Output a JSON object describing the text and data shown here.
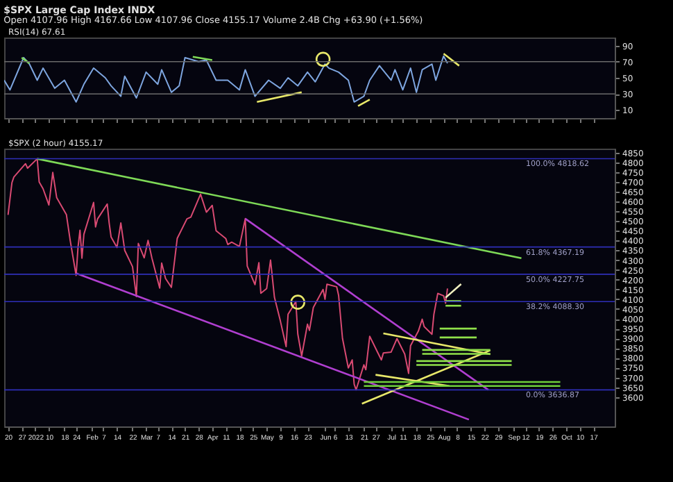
{
  "chart_data": [
    {
      "type": "line",
      "title": "$SPX Large Cap Index INDX",
      "subtitle": "Open 4107.96 High 4167.66 Low 4107.96 Close 4155.17 Volume 2.4B Chg +63.90 (+1.56%)",
      "annotations": [
        "RSI(14) 67.61"
      ],
      "xlim": [
        "2021-12-18",
        "2022-10-28"
      ],
      "xticks": [
        {
          "value": "2021-12-20",
          "label": null
        },
        {
          "value": "2021-12-27",
          "label": null
        },
        {
          "value": "2022-01-03",
          "label": null
        },
        {
          "value": "2022-01-10",
          "label": null
        },
        {
          "value": "2022-01-18",
          "label": null
        },
        {
          "value": "2022-01-24",
          "label": null
        },
        {
          "value": "2022-02-01",
          "label": null
        },
        {
          "value": "2022-02-07",
          "label": null
        },
        {
          "value": "2022-02-14",
          "label": null
        },
        {
          "value": "2022-02-22",
          "label": null
        },
        {
          "value": "2022-03-01",
          "label": null
        },
        {
          "value": "2022-03-07",
          "label": null
        },
        {
          "value": "2022-03-14",
          "label": null
        },
        {
          "value": "2022-03-21",
          "label": null
        },
        {
          "value": "2022-03-28",
          "label": null
        },
        {
          "value": "2022-04-04",
          "label": null
        },
        {
          "value": "2022-04-11",
          "label": null
        },
        {
          "value": "2022-04-18",
          "label": null
        },
        {
          "value": "2022-04-25",
          "label": null
        },
        {
          "value": "2022-05-02",
          "label": null
        },
        {
          "value": "2022-05-09",
          "label": null
        },
        {
          "value": "2022-05-16",
          "label": null
        },
        {
          "value": "2022-05-23",
          "label": null
        },
        {
          "value": "2022-06-01",
          "label": null
        },
        {
          "value": "2022-06-06",
          "label": null
        },
        {
          "value": "2022-06-13",
          "label": null
        },
        {
          "value": "2022-06-21",
          "label": null
        },
        {
          "value": "2022-06-27",
          "label": null
        },
        {
          "value": "2022-07-05",
          "label": null
        },
        {
          "value": "2022-07-11",
          "label": null
        },
        {
          "value": "2022-07-18",
          "label": null
        },
        {
          "value": "2022-07-25",
          "label": null
        },
        {
          "value": "2022-08-01",
          "label": null
        },
        {
          "value": "2022-08-08",
          "label": null
        },
        {
          "value": "2022-08-15",
          "label": null
        },
        {
          "value": "2022-08-22",
          "label": null
        },
        {
          "value": "2022-08-29",
          "label": null
        },
        {
          "value": "2022-09-06",
          "label": null
        },
        {
          "value": "2022-09-12",
          "label": null
        },
        {
          "value": "2022-09-19",
          "label": null
        },
        {
          "value": "2022-09-26",
          "label": null
        },
        {
          "value": "2022-10-03",
          "label": null
        },
        {
          "value": "2022-10-10",
          "label": null
        },
        {
          "value": "2022-10-17",
          "label": null
        }
      ],
      "ylim": [
        0,
        100
      ],
      "yticks": [
        10,
        30,
        50,
        70,
        90
      ],
      "tick_labels": "y",
      "grid": false,
      "ref_lines": [
        {
          "axis": "y",
          "value": 70,
          "label": null,
          "color": "#6b6b6b"
        },
        {
          "axis": "y",
          "value": 30,
          "label": null,
          "color": "#6b6b6b"
        }
      ],
      "series": [
        {
          "color": "#7ea6e0",
          "x": [
            "2021-12-18",
            "2021-12-21",
            "2021-12-28",
            "2021-12-31",
            "2022-01-04",
            "2022-01-07",
            "2022-01-13",
            "2022-01-18",
            "2022-01-24",
            "2022-01-28",
            "2022-02-02",
            "2022-02-08",
            "2022-02-11",
            "2022-02-16",
            "2022-02-18",
            "2022-02-24",
            "2022-03-01",
            "2022-03-07",
            "2022-03-09",
            "2022-03-14",
            "2022-03-18",
            "2022-03-21",
            "2022-03-28",
            "2022-04-01",
            "2022-04-06",
            "2022-04-12",
            "2022-04-18",
            "2022-04-21",
            "2022-04-26",
            "2022-05-03",
            "2022-05-09",
            "2022-05-13",
            "2022-05-18",
            "2022-05-23",
            "2022-05-27",
            "2022-06-01",
            "2022-06-03",
            "2022-06-08",
            "2022-06-13",
            "2022-06-16",
            "2022-06-21",
            "2022-06-24",
            "2022-06-29",
            "2022-07-05",
            "2022-07-07",
            "2022-07-11",
            "2022-07-15",
            "2022-07-18",
            "2022-07-21",
            "2022-07-26",
            "2022-07-28",
            "2022-08-01",
            "2022-08-03"
          ],
          "values": [
            47,
            35,
            75,
            67,
            47,
            62,
            37,
            47,
            20,
            42,
            62,
            50,
            40,
            27,
            52,
            25,
            57,
            42,
            60,
            32,
            40,
            75,
            70,
            72,
            47,
            47,
            35,
            60,
            27,
            47,
            37,
            50,
            40,
            57,
            45,
            67,
            62,
            57,
            47,
            20,
            27,
            47,
            65,
            47,
            60,
            35,
            62,
            32,
            60,
            67,
            47,
            77,
            68
          ]
        },
        {
          "color": "#7ed957",
          "x": [
            "2021-12-27",
            "2021-12-31"
          ],
          "values": [
            75,
            68
          ]
        },
        {
          "color": "#7ed957",
          "x": [
            "2022-03-25",
            "2022-04-04"
          ],
          "values": [
            76,
            72
          ]
        },
        {
          "color": "#e8e86a",
          "x": [
            "2022-04-27",
            "2022-05-20"
          ],
          "values": [
            20,
            32
          ]
        },
        {
          "color": "#e8e86a",
          "x": [
            "2022-06-18",
            "2022-06-24"
          ],
          "values": [
            15,
            23
          ]
        },
        {
          "color": "#e8e86a",
          "x": [
            "2022-08-01",
            "2022-08-09"
          ],
          "values": [
            80,
            65
          ]
        },
        {
          "type": "scatter",
          "marker": "circle",
          "color": "#e8e86a",
          "x": [
            "2022-05-31"
          ],
          "values": [
            73
          ]
        }
      ]
    },
    {
      "type": "line",
      "annotations": [
        "$SPX (2 hour) 4155.17"
      ],
      "xlim": [
        "2021-12-18",
        "2022-10-28"
      ],
      "xticks": [
        {
          "value": "2021-12-20",
          "label": "20"
        },
        {
          "value": "2021-12-27",
          "label": "27"
        },
        {
          "value": "2022-01-03",
          "label": "2022"
        },
        {
          "value": "2022-01-10",
          "label": "10"
        },
        {
          "value": "2022-01-18",
          "label": "18"
        },
        {
          "value": "2022-01-24",
          "label": "24"
        },
        {
          "value": "2022-02-01",
          "label": "Feb"
        },
        {
          "value": "2022-02-07",
          "label": "7"
        },
        {
          "value": "2022-02-14",
          "label": "14"
        },
        {
          "value": "2022-02-22",
          "label": "22"
        },
        {
          "value": "2022-03-01",
          "label": "Mar"
        },
        {
          "value": "2022-03-07",
          "label": "7"
        },
        {
          "value": "2022-03-14",
          "label": "14"
        },
        {
          "value": "2022-03-21",
          "label": "21"
        },
        {
          "value": "2022-03-28",
          "label": "28"
        },
        {
          "value": "2022-04-04",
          "label": "Apr"
        },
        {
          "value": "2022-04-11",
          "label": "11"
        },
        {
          "value": "2022-04-18",
          "label": "18"
        },
        {
          "value": "2022-04-25",
          "label": "25"
        },
        {
          "value": "2022-05-02",
          "label": "May"
        },
        {
          "value": "2022-05-09",
          "label": "9"
        },
        {
          "value": "2022-05-16",
          "label": "16"
        },
        {
          "value": "2022-05-23",
          "label": "23"
        },
        {
          "value": "2022-06-01",
          "label": "Jun"
        },
        {
          "value": "2022-06-06",
          "label": "6"
        },
        {
          "value": "2022-06-13",
          "label": "13"
        },
        {
          "value": "2022-06-21",
          "label": "21"
        },
        {
          "value": "2022-06-27",
          "label": "27"
        },
        {
          "value": "2022-07-05",
          "label": "Jul"
        },
        {
          "value": "2022-07-11",
          "label": "11"
        },
        {
          "value": "2022-07-18",
          "label": "18"
        },
        {
          "value": "2022-07-25",
          "label": "25"
        },
        {
          "value": "2022-08-01",
          "label": "Aug"
        },
        {
          "value": "2022-08-08",
          "label": "8"
        },
        {
          "value": "2022-08-15",
          "label": "15"
        },
        {
          "value": "2022-08-22",
          "label": "22"
        },
        {
          "value": "2022-08-29",
          "label": "29"
        },
        {
          "value": "2022-09-06",
          "label": "Sep"
        },
        {
          "value": "2022-09-12",
          "label": "12"
        },
        {
          "value": "2022-09-19",
          "label": "19"
        },
        {
          "value": "2022-09-26",
          "label": "26"
        },
        {
          "value": "2022-10-03",
          "label": "Oct"
        },
        {
          "value": "2022-10-10",
          "label": "10"
        },
        {
          "value": "2022-10-17",
          "label": "17"
        }
      ],
      "ylim": [
        3450,
        4870
      ],
      "yticks": [
        3600,
        3650,
        3700,
        3750,
        3800,
        3850,
        3900,
        3950,
        4000,
        4050,
        4100,
        4150,
        4200,
        4250,
        4300,
        4350,
        4400,
        4450,
        4500,
        4550,
        4600,
        4650,
        4700,
        4750,
        4800,
        4850
      ],
      "grid": false,
      "ref_lines": [
        {
          "axis": "y",
          "value": 4818.62,
          "label": "100.0% 4818.62",
          "color": "#2f2fb8"
        },
        {
          "axis": "y",
          "value": 4367.19,
          "label": "61.8% 4367.19",
          "color": "#2f2fb8"
        },
        {
          "axis": "y",
          "value": 4227.75,
          "label": "50.0% 4227.75",
          "color": "#2f2fb8"
        },
        {
          "axis": "y",
          "value": 4088.3,
          "label": "38.2% 4088.30",
          "color": "#2f2fb8"
        },
        {
          "axis": "y",
          "value": 3636.87,
          "label": "0.0% 3636.87",
          "color": "#2f2fb8"
        }
      ],
      "series": [
        {
          "color": "#d94a72",
          "x": [
            "2021-12-20",
            "2021-12-22",
            "2021-12-23",
            "2021-12-29",
            "2021-12-30",
            "2022-01-04",
            "2022-01-05",
            "2022-01-07",
            "2022-01-10",
            "2022-01-12",
            "2022-01-14",
            "2022-01-19",
            "2022-01-21",
            "2022-01-24",
            "2022-01-25",
            "2022-01-26",
            "2022-01-27",
            "2022-01-28",
            "2022-02-02",
            "2022-02-03",
            "2022-02-04",
            "2022-02-09",
            "2022-02-10",
            "2022-02-11",
            "2022-02-14",
            "2022-02-16",
            "2022-02-18",
            "2022-02-22",
            "2022-02-24",
            "2022-02-25",
            "2022-02-28",
            "2022-03-02",
            "2022-03-04",
            "2022-03-08",
            "2022-03-09",
            "2022-03-11",
            "2022-03-14",
            "2022-03-17",
            "2022-03-22",
            "2022-03-24",
            "2022-03-29",
            "2022-04-01",
            "2022-04-04",
            "2022-04-06",
            "2022-04-11",
            "2022-04-12",
            "2022-04-14",
            "2022-04-18",
            "2022-04-21",
            "2022-04-22",
            "2022-04-26",
            "2022-04-28",
            "2022-04-29",
            "2022-05-02",
            "2022-05-04",
            "2022-05-06",
            "2022-05-09",
            "2022-05-12",
            "2022-05-13",
            "2022-05-17",
            "2022-05-18",
            "2022-05-20",
            "2022-05-23",
            "2022-05-24",
            "2022-05-26",
            "2022-05-31",
            "2022-06-01",
            "2022-06-02",
            "2022-06-07",
            "2022-06-08",
            "2022-06-10",
            "2022-06-13",
            "2022-06-15",
            "2022-06-16",
            "2022-06-17",
            "2022-06-21",
            "2022-06-22",
            "2022-06-24",
            "2022-06-28",
            "2022-06-30",
            "2022-07-01",
            "2022-07-05",
            "2022-07-08",
            "2022-07-12",
            "2022-07-14",
            "2022-07-15",
            "2022-07-19",
            "2022-07-21",
            "2022-07-22",
            "2022-07-26",
            "2022-07-27",
            "2022-07-29",
            "2022-08-01",
            "2022-08-02",
            "2022-08-03"
          ],
          "values": [
            4531,
            4696,
            4725,
            4793,
            4770,
            4818,
            4700,
            4665,
            4582,
            4748,
            4620,
            4533,
            4398,
            4222,
            4367,
            4453,
            4310,
            4432,
            4595,
            4470,
            4510,
            4587,
            4490,
            4418,
            4365,
            4490,
            4350,
            4267,
            4114,
            4385,
            4312,
            4401,
            4310,
            4157,
            4285,
            4206,
            4161,
            4411,
            4511,
            4520,
            4637,
            4545,
            4580,
            4450,
            4410,
            4380,
            4392,
            4370,
            4512,
            4270,
            4175,
            4287,
            4131,
            4155,
            4300,
            4110,
            3991,
            3858,
            4023,
            4088,
            3923,
            3810,
            3973,
            3941,
            4058,
            4150,
            4100,
            4177,
            4164,
            4120,
            3900,
            3749,
            3790,
            3666,
            3637,
            3765,
            3740,
            3911,
            3830,
            3790,
            3825,
            3830,
            3899,
            3820,
            3721,
            3863,
            3937,
            3998,
            3960,
            3921,
            4023,
            4130,
            4118,
            4080,
            4155
          ]
        },
        {
          "color": "#7ed957",
          "x": [
            "2022-01-04",
            "2022-09-10"
          ],
          "values": [
            4818,
            4310
          ]
        },
        {
          "color": "#b03fd0",
          "x": [
            "2022-04-21",
            "2022-08-24"
          ],
          "values": [
            4512,
            3637
          ]
        },
        {
          "color": "#b03fd0",
          "x": [
            "2022-01-24",
            "2022-08-14"
          ],
          "values": [
            4233,
            3485
          ]
        },
        {
          "color": "#e8e86a",
          "x": [
            "2022-07-01",
            "2022-08-25"
          ],
          "values": [
            3926,
            3819
          ]
        },
        {
          "color": "#e8e86a",
          "x": [
            "2022-06-20",
            "2022-08-25"
          ],
          "values": [
            3566,
            3839
          ]
        },
        {
          "color": "#e8e86a",
          "x": [
            "2022-06-27",
            "2022-08-04"
          ],
          "values": [
            3714,
            3657
          ]
        },
        {
          "color": "#f0f0c0",
          "x": [
            "2022-08-02",
            "2022-08-10"
          ],
          "values": [
            4108,
            4178
          ]
        },
        {
          "color": "#8fe04a",
          "x": [
            "2022-08-02",
            "2022-08-10"
          ],
          "values": [
            4091,
            4091
          ]
        },
        {
          "color": "#8fe04a",
          "x": [
            "2022-08-02",
            "2022-08-10"
          ],
          "values": [
            4067,
            4067
          ]
        },
        {
          "color": "#8fe04a",
          "x": [
            "2022-07-30",
            "2022-08-18"
          ],
          "values": [
            3950,
            3950
          ]
        },
        {
          "color": "#8fe04a",
          "x": [
            "2022-07-30",
            "2022-08-18"
          ],
          "values": [
            3905,
            3905
          ]
        },
        {
          "color": "#8fe04a",
          "x": [
            "2022-07-21",
            "2022-08-25"
          ],
          "values": [
            3841,
            3841
          ]
        },
        {
          "color": "#8fe04a",
          "x": [
            "2022-07-21",
            "2022-08-25"
          ],
          "values": [
            3821,
            3821
          ]
        },
        {
          "color": "#8fe04a",
          "x": [
            "2022-07-18",
            "2022-09-05"
          ],
          "values": [
            3784,
            3784
          ]
        },
        {
          "color": "#8fe04a",
          "x": [
            "2022-07-18",
            "2022-09-05"
          ],
          "values": [
            3764,
            3764
          ]
        },
        {
          "color": "#6fcf3a",
          "x": [
            "2022-06-21",
            "2022-09-30"
          ],
          "values": [
            3677,
            3677
          ]
        },
        {
          "color": "#6fcf3a",
          "x": [
            "2022-06-21",
            "2022-09-30"
          ],
          "values": [
            3657,
            3657
          ]
        },
        {
          "type": "scatter",
          "marker": "circle",
          "color": "#e8e86a",
          "x": [
            "2022-05-18"
          ],
          "values": [
            4085
          ]
        }
      ]
    }
  ]
}
